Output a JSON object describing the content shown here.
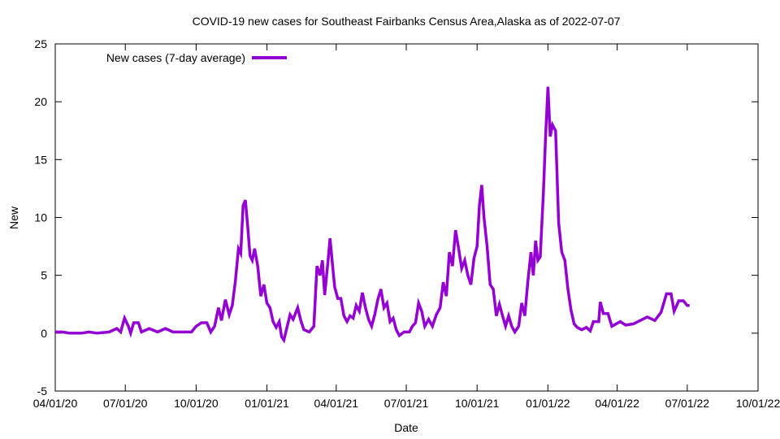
{
  "chart_data": {
    "type": "line",
    "title": "COVID-19 new cases for Southeast Fairbanks Census Area,Alaska as of 2022-07-07",
    "xlabel": "Date",
    "ylabel": "New",
    "x_ticks": [
      "04/01/20",
      "07/01/20",
      "10/01/20",
      "01/01/21",
      "04/01/21",
      "07/01/21",
      "10/01/21",
      "01/01/22",
      "04/01/22",
      "07/01/22",
      "10/01/22"
    ],
    "xlim": [
      "2020-04-01",
      "2022-10-01"
    ],
    "ylim": [
      -5,
      25
    ],
    "y_ticks": [
      -5,
      0,
      5,
      10,
      15,
      20,
      25
    ],
    "grid": false,
    "legend_position": "top-left",
    "series": [
      {
        "name": "New cases (7-day average)",
        "color": "#9400d3",
        "points": [
          [
            "2020-04-01",
            0.1
          ],
          [
            "2020-04-10",
            0.1
          ],
          [
            "2020-04-20",
            0.0
          ],
          [
            "2020-05-05",
            0.0
          ],
          [
            "2020-05-15",
            0.1
          ],
          [
            "2020-05-25",
            0.0
          ],
          [
            "2020-06-10",
            0.1
          ],
          [
            "2020-06-20",
            0.4
          ],
          [
            "2020-06-25",
            0.1
          ],
          [
            "2020-06-30",
            1.3
          ],
          [
            "2020-07-05",
            0.6
          ],
          [
            "2020-07-08",
            0.0
          ],
          [
            "2020-07-12",
            0.9
          ],
          [
            "2020-07-18",
            0.9
          ],
          [
            "2020-07-22",
            0.1
          ],
          [
            "2020-08-01",
            0.4
          ],
          [
            "2020-08-12",
            0.1
          ],
          [
            "2020-08-22",
            0.4
          ],
          [
            "2020-09-01",
            0.1
          ],
          [
            "2020-09-15",
            0.1
          ],
          [
            "2020-09-25",
            0.1
          ],
          [
            "2020-10-01",
            0.6
          ],
          [
            "2020-10-08",
            0.9
          ],
          [
            "2020-10-15",
            0.9
          ],
          [
            "2020-10-20",
            0.1
          ],
          [
            "2020-10-25",
            0.6
          ],
          [
            "2020-10-30",
            2.2
          ],
          [
            "2020-11-03",
            1.1
          ],
          [
            "2020-11-08",
            2.9
          ],
          [
            "2020-11-13",
            1.6
          ],
          [
            "2020-11-17",
            2.4
          ],
          [
            "2020-11-21",
            4.5
          ],
          [
            "2020-11-25",
            7.3
          ],
          [
            "2020-11-28",
            6.9
          ],
          [
            "2020-12-01",
            11.0
          ],
          [
            "2020-12-04",
            11.5
          ],
          [
            "2020-12-07",
            9.2
          ],
          [
            "2020-12-10",
            6.7
          ],
          [
            "2020-12-13",
            6.3
          ],
          [
            "2020-12-16",
            7.3
          ],
          [
            "2020-12-20",
            5.8
          ],
          [
            "2020-12-24",
            3.2
          ],
          [
            "2020-12-28",
            4.2
          ],
          [
            "2021-01-01",
            2.6
          ],
          [
            "2021-01-05",
            2.2
          ],
          [
            "2021-01-09",
            1.0
          ],
          [
            "2021-01-13",
            0.5
          ],
          [
            "2021-01-17",
            1.0
          ],
          [
            "2021-01-20",
            -0.3
          ],
          [
            "2021-01-23",
            -0.6
          ],
          [
            "2021-01-27",
            0.5
          ],
          [
            "2021-01-31",
            1.6
          ],
          [
            "2021-02-04",
            1.2
          ],
          [
            "2021-02-10",
            2.2
          ],
          [
            "2021-02-14",
            1.1
          ],
          [
            "2021-02-18",
            0.3
          ],
          [
            "2021-02-25",
            0.1
          ],
          [
            "2021-03-03",
            0.6
          ],
          [
            "2021-03-07",
            5.8
          ],
          [
            "2021-03-11",
            5.0
          ],
          [
            "2021-03-14",
            6.3
          ],
          [
            "2021-03-17",
            3.3
          ],
          [
            "2021-03-21",
            6.0
          ],
          [
            "2021-03-24",
            8.2
          ],
          [
            "2021-03-27",
            6.0
          ],
          [
            "2021-03-30",
            4.0
          ],
          [
            "2021-04-03",
            3.0
          ],
          [
            "2021-04-07",
            3.0
          ],
          [
            "2021-04-11",
            1.5
          ],
          [
            "2021-04-15",
            1.0
          ],
          [
            "2021-04-19",
            1.5
          ],
          [
            "2021-04-23",
            1.3
          ],
          [
            "2021-04-27",
            2.4
          ],
          [
            "2021-05-01",
            1.9
          ],
          [
            "2021-05-05",
            3.5
          ],
          [
            "2021-05-09",
            2.2
          ],
          [
            "2021-05-13",
            1.2
          ],
          [
            "2021-05-17",
            0.6
          ],
          [
            "2021-05-21",
            1.6
          ],
          [
            "2021-05-25",
            2.9
          ],
          [
            "2021-05-29",
            3.8
          ],
          [
            "2021-06-02",
            2.2
          ],
          [
            "2021-06-06",
            2.6
          ],
          [
            "2021-06-10",
            1.0
          ],
          [
            "2021-06-14",
            1.3
          ],
          [
            "2021-06-18",
            0.3
          ],
          [
            "2021-06-22",
            -0.2
          ],
          [
            "2021-06-28",
            0.1
          ],
          [
            "2021-07-05",
            0.1
          ],
          [
            "2021-07-09",
            0.6
          ],
          [
            "2021-07-13",
            0.9
          ],
          [
            "2021-07-17",
            2.6
          ],
          [
            "2021-07-21",
            1.9
          ],
          [
            "2021-07-25",
            0.6
          ],
          [
            "2021-07-30",
            1.2
          ],
          [
            "2021-08-04",
            0.6
          ],
          [
            "2021-08-09",
            1.6
          ],
          [
            "2021-08-14",
            2.2
          ],
          [
            "2021-08-18",
            4.4
          ],
          [
            "2021-08-22",
            3.2
          ],
          [
            "2021-08-26",
            7.0
          ],
          [
            "2021-08-30",
            5.8
          ],
          [
            "2021-09-03",
            8.9
          ],
          [
            "2021-09-07",
            7.3
          ],
          [
            "2021-09-11",
            5.6
          ],
          [
            "2021-09-15",
            6.3
          ],
          [
            "2021-09-19",
            5.0
          ],
          [
            "2021-09-23",
            4.2
          ],
          [
            "2021-09-27",
            6.5
          ],
          [
            "2021-10-01",
            7.5
          ],
          [
            "2021-10-04",
            11.0
          ],
          [
            "2021-10-07",
            12.8
          ],
          [
            "2021-10-10",
            10.0
          ],
          [
            "2021-10-14",
            7.5
          ],
          [
            "2021-10-18",
            4.2
          ],
          [
            "2021-10-22",
            3.8
          ],
          [
            "2021-10-26",
            1.5
          ],
          [
            "2021-10-30",
            2.5
          ],
          [
            "2021-11-03",
            1.5
          ],
          [
            "2021-11-07",
            0.6
          ],
          [
            "2021-11-11",
            1.5
          ],
          [
            "2021-11-15",
            0.6
          ],
          [
            "2021-11-19",
            0.1
          ],
          [
            "2021-11-24",
            0.6
          ],
          [
            "2021-11-28",
            2.6
          ],
          [
            "2021-12-02",
            1.5
          ],
          [
            "2021-12-06",
            4.5
          ],
          [
            "2021-12-10",
            7.0
          ],
          [
            "2021-12-13",
            5.0
          ],
          [
            "2021-12-16",
            8.0
          ],
          [
            "2021-12-19",
            6.3
          ],
          [
            "2021-12-22",
            6.6
          ],
          [
            "2021-12-26",
            12.0
          ],
          [
            "2021-12-29",
            17.0
          ],
          [
            "2022-01-01",
            21.3
          ],
          [
            "2022-01-04",
            17.0
          ],
          [
            "2022-01-07",
            18.0
          ],
          [
            "2022-01-11",
            17.5
          ],
          [
            "2022-01-15",
            9.5
          ],
          [
            "2022-01-19",
            7.0
          ],
          [
            "2022-01-23",
            6.3
          ],
          [
            "2022-01-27",
            3.8
          ],
          [
            "2022-01-31",
            2.0
          ],
          [
            "2022-02-04",
            0.8
          ],
          [
            "2022-02-08",
            0.5
          ],
          [
            "2022-02-14",
            0.3
          ],
          [
            "2022-02-20",
            0.5
          ],
          [
            "2022-02-25",
            0.2
          ],
          [
            "2022-03-01",
            1.0
          ],
          [
            "2022-03-08",
            1.0
          ],
          [
            "2022-03-10",
            2.7
          ],
          [
            "2022-03-14",
            1.7
          ],
          [
            "2022-03-20",
            1.7
          ],
          [
            "2022-03-25",
            0.6
          ],
          [
            "2022-04-05",
            1.0
          ],
          [
            "2022-04-12",
            0.7
          ],
          [
            "2022-04-22",
            0.8
          ],
          [
            "2022-05-10",
            1.4
          ],
          [
            "2022-05-20",
            1.1
          ],
          [
            "2022-05-28",
            1.8
          ],
          [
            "2022-06-04",
            3.4
          ],
          [
            "2022-06-10",
            3.4
          ],
          [
            "2022-06-14",
            1.9
          ],
          [
            "2022-06-20",
            2.8
          ],
          [
            "2022-06-26",
            2.8
          ],
          [
            "2022-07-01",
            2.4
          ],
          [
            "2022-07-04",
            2.4
          ]
        ]
      }
    ]
  }
}
